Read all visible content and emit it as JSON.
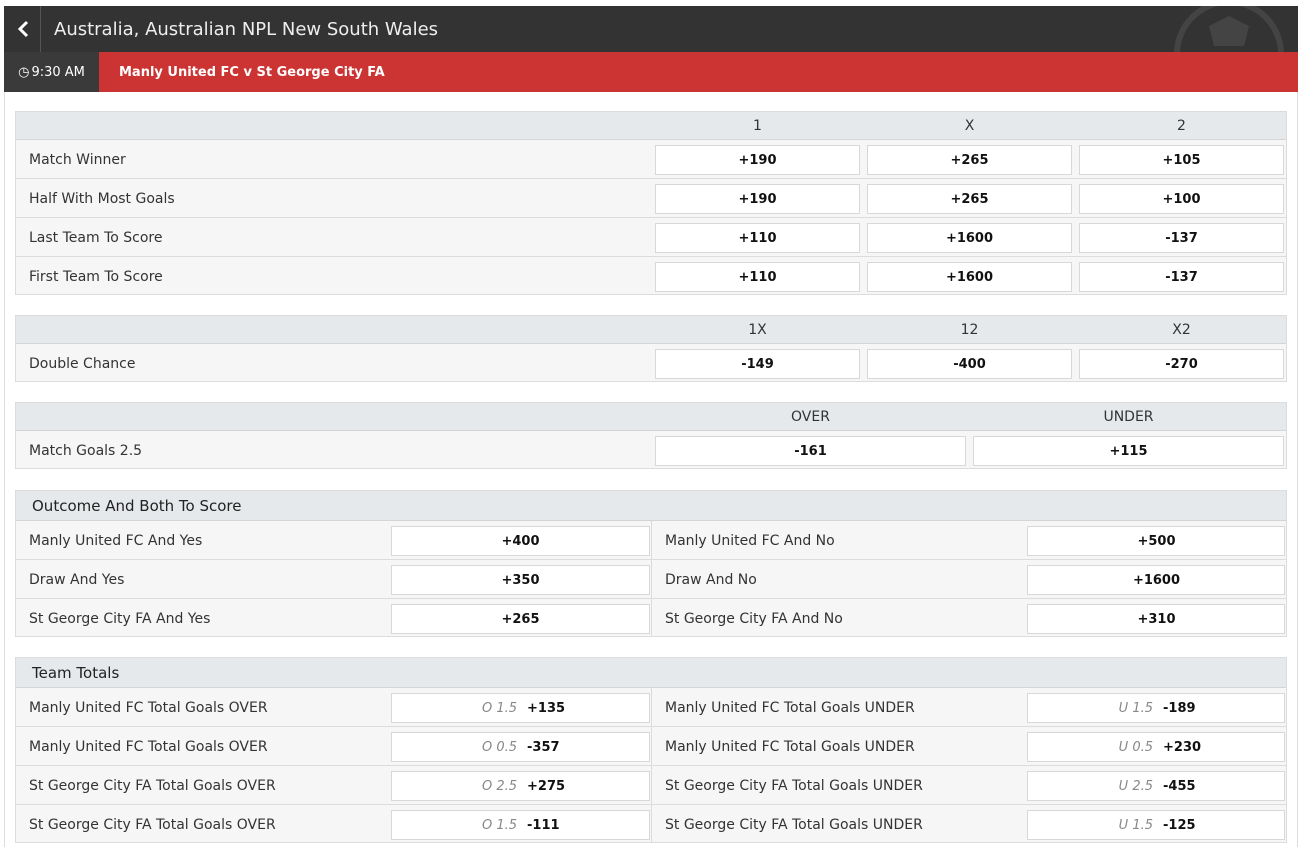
{
  "header": {
    "title": "Australia, Australian NPL New South Wales"
  },
  "event": {
    "time": "9:30 AM",
    "match": "Manly United FC v St George City FA"
  },
  "markets": [
    {
      "columns": [
        "1",
        "X",
        "2"
      ],
      "rows": [
        {
          "label": "Match Winner",
          "odds": [
            "+190",
            "+265",
            "+105"
          ]
        },
        {
          "label": "Half With Most Goals",
          "odds": [
            "+190",
            "+265",
            "+100"
          ]
        },
        {
          "label": "Last Team To Score",
          "odds": [
            "+110",
            "+1600",
            "-137"
          ]
        },
        {
          "label": "First Team To Score",
          "odds": [
            "+110",
            "+1600",
            "-137"
          ]
        }
      ]
    },
    {
      "columns": [
        "1X",
        "12",
        "X2"
      ],
      "rows": [
        {
          "label": "Double Chance",
          "odds": [
            "-149",
            "-400",
            "-270"
          ]
        }
      ]
    },
    {
      "columns": [
        "OVER",
        "UNDER"
      ],
      "rows": [
        {
          "label": "Match Goals 2.5",
          "odds": [
            "-161",
            "+115"
          ]
        }
      ]
    }
  ],
  "outcome": {
    "title": "Outcome And Both To Score",
    "rows": [
      {
        "left": {
          "label": "Manly United FC And Yes",
          "odds": "+400"
        },
        "right": {
          "label": "Manly United FC And No",
          "odds": "+500"
        }
      },
      {
        "left": {
          "label": "Draw And Yes",
          "odds": "+350"
        },
        "right": {
          "label": "Draw And No",
          "odds": "+1600"
        }
      },
      {
        "left": {
          "label": "St George City FA And Yes",
          "odds": "+265"
        },
        "right": {
          "label": "St George City FA And No",
          "odds": "+310"
        }
      }
    ]
  },
  "team_totals": {
    "title": "Team Totals",
    "rows": [
      {
        "left": {
          "label": "Manly United FC Total Goals OVER",
          "line": "O 1.5",
          "odds": "+135"
        },
        "right": {
          "label": "Manly United FC Total Goals UNDER",
          "line": "U 1.5",
          "odds": "-189"
        }
      },
      {
        "left": {
          "label": "Manly United FC Total Goals OVER",
          "line": "O 0.5",
          "odds": "-357"
        },
        "right": {
          "label": "Manly United FC Total Goals UNDER",
          "line": "U 0.5",
          "odds": "+230"
        }
      },
      {
        "left": {
          "label": "St George City FA Total Goals OVER",
          "line": "O 2.5",
          "odds": "+275"
        },
        "right": {
          "label": "St George City FA Total Goals UNDER",
          "line": "U 2.5",
          "odds": "-455"
        }
      },
      {
        "left": {
          "label": "St George City FA Total Goals OVER",
          "line": "O 1.5",
          "odds": "-111"
        },
        "right": {
          "label": "St George City FA Total Goals UNDER",
          "line": "U 1.5",
          "odds": "-125"
        }
      }
    ]
  }
}
